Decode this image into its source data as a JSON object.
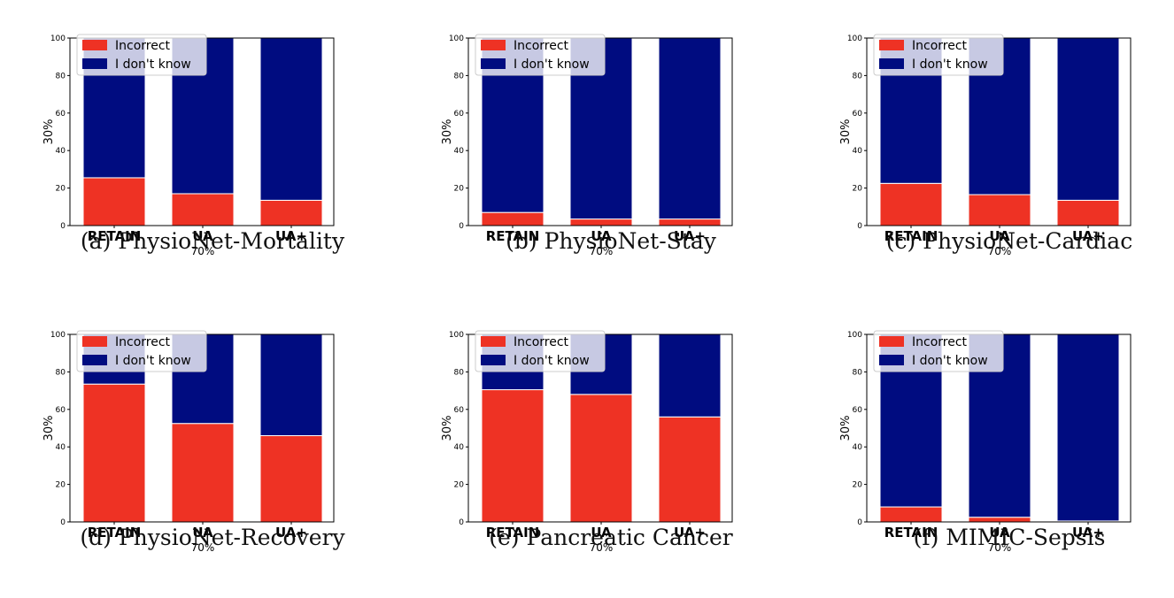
{
  "colors": {
    "incorrect": "#ee3224",
    "dont_know": "#000c80"
  },
  "chart_data": [
    {
      "type": "bar",
      "caption": "(a) PhysioNet-Mortality",
      "categories": [
        "RETAIN",
        "UA",
        "UA+"
      ],
      "xlabel": "70%",
      "ylabel": "30%",
      "ylim": [
        0,
        100
      ],
      "yticks": [
        "0",
        "20",
        "40",
        "60",
        "80",
        "100"
      ],
      "stacked": true,
      "legend_position": "top-left",
      "series": [
        {
          "name": "Incorrect",
          "values": [
            25.5,
            17,
            13.5
          ]
        },
        {
          "name": "I don't know",
          "values": [
            74.5,
            83,
            86.5
          ]
        }
      ]
    },
    {
      "type": "bar",
      "caption": "(b) PhysioNet-Stay",
      "categories": [
        "RETAIN",
        "UA",
        "UA+"
      ],
      "xlabel": "70%",
      "ylabel": "30%",
      "ylim": [
        0,
        100
      ],
      "yticks": [
        "0",
        "20",
        "40",
        "60",
        "80",
        "100"
      ],
      "stacked": true,
      "legend_position": "top-left",
      "series": [
        {
          "name": "Incorrect",
          "values": [
            7,
            3.5,
            3.5
          ]
        },
        {
          "name": "I don't know",
          "values": [
            93,
            96.5,
            96.5
          ]
        }
      ]
    },
    {
      "type": "bar",
      "caption": "(c) PhysioNet-Cardiac",
      "categories": [
        "RETAIN",
        "UA",
        "UA+"
      ],
      "xlabel": "70%",
      "ylabel": "30%",
      "ylim": [
        0,
        100
      ],
      "yticks": [
        "0",
        "20",
        "40",
        "60",
        "80",
        "100"
      ],
      "stacked": true,
      "legend_position": "top-left",
      "series": [
        {
          "name": "Incorrect",
          "values": [
            22.5,
            16.5,
            13.5
          ]
        },
        {
          "name": "I don't know",
          "values": [
            77.5,
            83.5,
            86.5
          ]
        }
      ]
    },
    {
      "type": "bar",
      "caption": "(d) PhysioNet-Recovery",
      "categories": [
        "RETAIN",
        "UA",
        "UA+"
      ],
      "xlabel": "70%",
      "ylabel": "30%",
      "ylim": [
        0,
        100
      ],
      "yticks": [
        "0",
        "20",
        "40",
        "60",
        "80",
        "100"
      ],
      "stacked": true,
      "legend_position": "top-left",
      "series": [
        {
          "name": "Incorrect",
          "values": [
            73.5,
            52.5,
            46
          ]
        },
        {
          "name": "I don't know",
          "values": [
            26.5,
            47.5,
            54
          ]
        }
      ]
    },
    {
      "type": "bar",
      "caption": "(e) Pancreatic Cancer",
      "categories": [
        "RETAIN",
        "UA",
        "UA+"
      ],
      "xlabel": "70%",
      "ylabel": "30%",
      "ylim": [
        0,
        100
      ],
      "yticks": [
        "0",
        "20",
        "40",
        "60",
        "80",
        "100"
      ],
      "stacked": true,
      "legend_position": "top-left",
      "series": [
        {
          "name": "Incorrect",
          "values": [
            70.5,
            68,
            56
          ]
        },
        {
          "name": "I don't know",
          "values": [
            29.5,
            32,
            44
          ]
        }
      ]
    },
    {
      "type": "bar",
      "caption": "(f) MIMIC-Sepsis",
      "categories": [
        "RETAIN",
        "UA",
        "UA+"
      ],
      "xlabel": "70%",
      "ylabel": "30%",
      "ylim": [
        0,
        100
      ],
      "yticks": [
        "0",
        "20",
        "40",
        "60",
        "80",
        "100"
      ],
      "stacked": true,
      "legend_position": "top-left",
      "series": [
        {
          "name": "Incorrect",
          "values": [
            8,
            2.5,
            0.5
          ]
        },
        {
          "name": "I don't know",
          "values": [
            92,
            97.5,
            99.5
          ]
        }
      ]
    }
  ]
}
